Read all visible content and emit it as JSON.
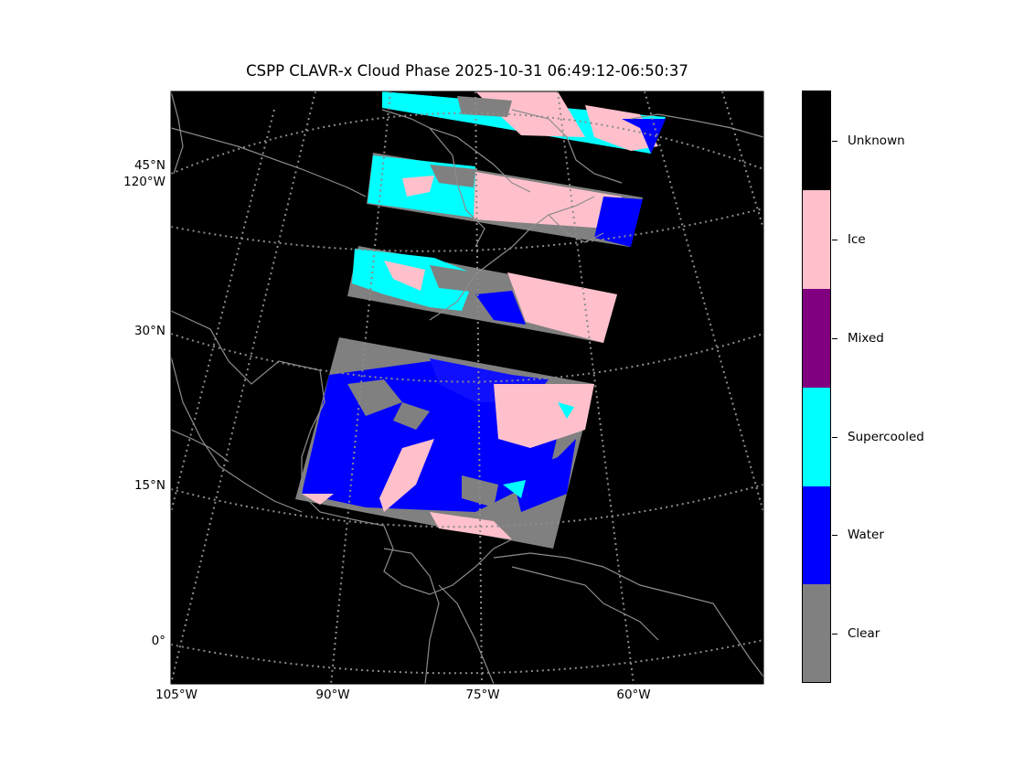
{
  "title": "CSPP CLAVR-x Cloud Phase 2025-10-31 06:49:12-06:50:37",
  "lat_labels": [
    "45°N",
    "120°W",
    "30°N",
    "15°N",
    "0°"
  ],
  "lon_labels": [
    "105°W",
    "90°W",
    "75°W",
    "60°W"
  ],
  "colorbar": {
    "categories": [
      {
        "label": "Unknown",
        "color": "#000000"
      },
      {
        "label": "Ice",
        "color": "#ffc0cb"
      },
      {
        "label": "Mixed",
        "color": "#800080"
      },
      {
        "label": "Supercooled",
        "color": "#00ffff"
      },
      {
        "label": "Water",
        "color": "#0000ff"
      },
      {
        "label": "Clear",
        "color": "#808080"
      }
    ]
  },
  "colors": {
    "background": "#000000",
    "coastline": "#8c8c8c",
    "gridline": "#8c8c8c"
  }
}
